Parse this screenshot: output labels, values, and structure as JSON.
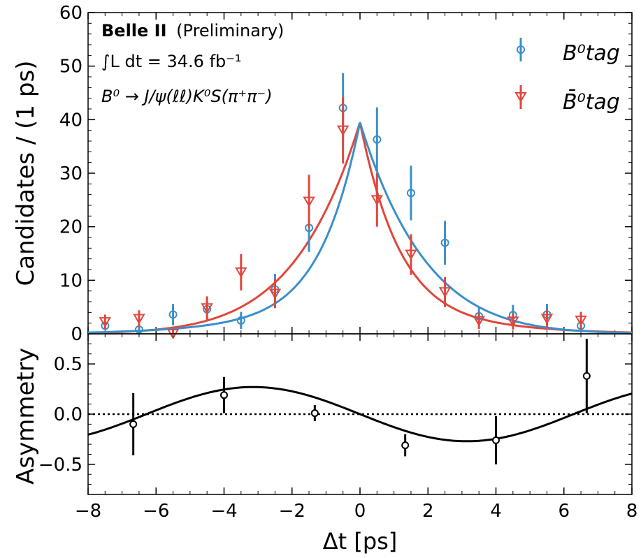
{
  "chart_data": [
    {
      "type": "scatter",
      "panel": "top",
      "ylabel": "Candidates / (1 ps)",
      "xlim": [
        -8,
        8
      ],
      "ylim": [
        0,
        60
      ],
      "yticks": [
        0,
        10,
        20,
        30,
        40,
        50,
        60
      ],
      "annotations": {
        "experiment": "Belle II",
        "status": "(Preliminary)",
        "luminosity": "∫L dt = 34.6 fb⁻¹",
        "decay": "B⁰ → J/ψ(ℓℓ)K⁰S(π⁺π⁻)"
      },
      "legend_position": "top-right",
      "series": [
        {
          "name": "B⁰tag",
          "marker": "circle",
          "color": "#3b8fc9",
          "x": [
            -7.5,
            -6.5,
            -5.5,
            -4.5,
            -3.5,
            -2.5,
            -1.5,
            -0.5,
            0.5,
            1.5,
            2.5,
            3.5,
            4.5,
            5.5,
            6.5
          ],
          "y": [
            1.5,
            0.8,
            3.6,
            4.6,
            2.5,
            8.3,
            19.8,
            42.2,
            36.3,
            26.3,
            17.0,
            3.3,
            3.5,
            3.6,
            1.5
          ],
          "err": [
            0.8,
            0.7,
            2.0,
            2.1,
            1.6,
            2.9,
            4.5,
            6.5,
            6.0,
            5.1,
            4.1,
            1.8,
            1.9,
            2.0,
            1.0
          ]
        },
        {
          "name": "B̄⁰tag",
          "marker": "triangle-down",
          "color": "#e0473c",
          "x": [
            -7.5,
            -6.5,
            -5.5,
            -4.5,
            -3.5,
            -2.5,
            -1.5,
            -0.5,
            0.5,
            1.5,
            2.5,
            3.5,
            4.5,
            5.5,
            6.5
          ],
          "y": [
            2.2,
            2.8,
            0,
            4.8,
            11.5,
            7.5,
            24.7,
            38.0,
            25.0,
            14.8,
            7.8,
            2.4,
            2.3,
            2.8,
            2.5
          ],
          "err": [
            1.4,
            1.6,
            1.0,
            2.2,
            3.4,
            2.7,
            5.0,
            6.2,
            5.0,
            3.8,
            2.8,
            1.5,
            1.5,
            1.7,
            1.6
          ]
        }
      ],
      "fits": [
        {
          "name": "B⁰tag fit",
          "color": "#3b8fc9"
        },
        {
          "name": "B̄⁰tag fit",
          "color": "#e0473c"
        }
      ]
    },
    {
      "type": "scatter",
      "panel": "bottom",
      "xlabel": "Δt [ps]",
      "ylabel": "Asymmetry",
      "xlim": [
        -8,
        8
      ],
      "ylim": [
        -0.8,
        0.8
      ],
      "xticks": [
        "−8",
        "−6",
        "−4",
        "−2",
        "0",
        "2",
        "4",
        "6",
        "8"
      ],
      "yticks": [
        "0.5",
        "0.0",
        "−0.5"
      ],
      "zero_line": "dotted",
      "series": [
        {
          "name": "Asymmetry",
          "marker": "circle",
          "color": "#000000",
          "x": [
            -6.67,
            -4.0,
            -1.33,
            1.33,
            4.0,
            6.67
          ],
          "y": [
            -0.1,
            0.19,
            0.01,
            -0.31,
            -0.26,
            0.38
          ],
          "err": [
            0.31,
            0.18,
            0.08,
            0.11,
            0.24,
            0.37
          ]
        }
      ],
      "fit": {
        "type": "sinusoid",
        "amplitude": 0.27,
        "omega": 0.5
      }
    }
  ]
}
